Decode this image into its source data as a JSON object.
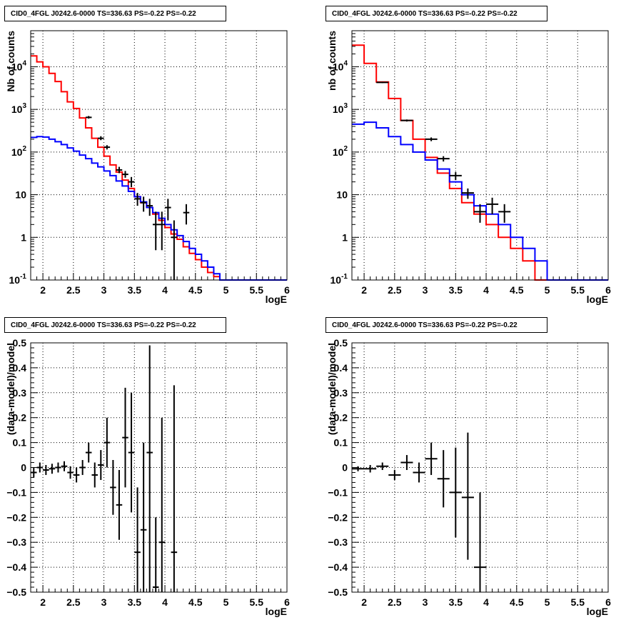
{
  "panels": [
    {
      "title": "CID0_4FGL J0242.6-0000 TS=336.63 PS=-0.22 PS=-0.22"
    },
    {
      "title": "CID0_4FGL J0242.6-0000 TS=336.63 PS=-0.22 PS=-0.22"
    },
    {
      "title": "CID0_4FGL J0242.6-0000 TS=336.63 PS=-0.22 PS=-0.22"
    },
    {
      "title": "CID0_4FGL J0242.6-0000 TS=336.63 PS=-0.22 PS=-0.22"
    }
  ],
  "colors": {
    "total_model": "#ff0000",
    "component_model": "#0000ff",
    "data": "#000000"
  },
  "chart_data": [
    {
      "type": "line",
      "title": "CID0_4FGL J0242.6-0000 TS=336.63 PS=-0.22 PS=-0.22",
      "xlabel": "logE",
      "ylabel": "Nb of counts",
      "xlim": [
        1.8,
        6
      ],
      "ylim": [
        0.1,
        70000
      ],
      "yscale": "log",
      "grid": true,
      "xticks": [
        2,
        2.5,
        3,
        3.5,
        4,
        4.5,
        5,
        5.5,
        6
      ],
      "xtick_labels": [
        "2",
        "2.5",
        "3",
        "3.5",
        "4",
        "4.5",
        "5",
        "5.5",
        "6"
      ],
      "yticks": [
        0.1,
        1,
        10,
        100,
        1000,
        10000
      ],
      "ytick_labels": [
        "10^-1",
        "1",
        "10",
        "10^2",
        "10^3",
        "10^4"
      ],
      "bin_edges": [
        1.8,
        1.9,
        2.0,
        2.1,
        2.2,
        2.3,
        2.4,
        2.5,
        2.6,
        2.7,
        2.8,
        2.9,
        3.0,
        3.1,
        3.2,
        3.3,
        3.4,
        3.5,
        3.6,
        3.7,
        3.8,
        3.9,
        4.0,
        4.1,
        4.2,
        4.3,
        4.4,
        4.5,
        4.6,
        4.7,
        4.8,
        4.9,
        5.0,
        5.1,
        5.2,
        5.3,
        5.4,
        5.5,
        5.6,
        5.7,
        5.8,
        5.9,
        6.0
      ],
      "series": [
        {
          "kind": "hist",
          "color": "#ff0000",
          "values": [
            18000,
            13000,
            10000,
            7000,
            4500,
            2600,
            1500,
            1050,
            630,
            370,
            210,
            130,
            80,
            50,
            34,
            22,
            14,
            9,
            6.5,
            5,
            3.5,
            2.5,
            1.7,
            1.2,
            0.9,
            0.6,
            0.42,
            0.3,
            0.2,
            0.15,
            0.12,
            0.1,
            0.1,
            0.1,
            0.1,
            0.1,
            0.1,
            0.1,
            0.1,
            0.1,
            0.1,
            0.1
          ]
        },
        {
          "kind": "hist",
          "color": "#0000ff",
          "values": [
            220,
            230,
            225,
            200,
            175,
            150,
            125,
            105,
            85,
            70,
            55,
            45,
            36,
            28,
            21,
            16,
            12,
            9,
            6.8,
            5,
            3.8,
            2.8,
            2.0,
            1.5,
            1.1,
            0.8,
            0.55,
            0.4,
            0.28,
            0.2,
            0.14,
            0.1,
            0.1,
            0.1,
            0.1,
            0.1,
            0.1,
            0.1,
            0.1,
            0.1,
            0.1,
            0.1
          ]
        },
        {
          "kind": "points",
          "color": "#000000",
          "points": [
            {
              "x": 2.75,
              "y": 650,
              "lo": 610,
              "hi": 700
            },
            {
              "x": 2.95,
              "y": 210,
              "lo": 190,
              "hi": 235
            },
            {
              "x": 3.05,
              "y": 130,
              "lo": 115,
              "hi": 145
            },
            {
              "x": 3.25,
              "y": 38,
              "lo": 32,
              "hi": 45
            },
            {
              "x": 3.35,
              "y": 30,
              "lo": 25,
              "hi": 36
            },
            {
              "x": 3.45,
              "y": 20,
              "lo": 15,
              "hi": 26
            },
            {
              "x": 3.55,
              "y": 8,
              "lo": 5.5,
              "hi": 11
            },
            {
              "x": 3.65,
              "y": 6.5,
              "lo": 4,
              "hi": 9
            },
            {
              "x": 3.75,
              "y": 5.5,
              "lo": 3.2,
              "hi": 8
            },
            {
              "x": 3.85,
              "y": 2,
              "lo": 0.5,
              "hi": 4
            },
            {
              "x": 3.95,
              "y": 2,
              "lo": 0.5,
              "hi": 4
            },
            {
              "x": 4.05,
              "y": 5,
              "lo": 2.5,
              "hi": 8
            },
            {
              "x": 4.15,
              "y": 1,
              "lo": 0.1,
              "hi": 2.5
            },
            {
              "x": 4.35,
              "y": 3.8,
              "lo": 2,
              "hi": 6
            }
          ]
        }
      ]
    },
    {
      "type": "line",
      "title": "CID0_4FGL J0242.6-0000 TS=336.63 PS=-0.22 PS=-0.22",
      "xlabel": "logE",
      "ylabel": "nb of counts",
      "xlim": [
        1.8,
        6
      ],
      "ylim": [
        0.1,
        70000
      ],
      "yscale": "log",
      "grid": true,
      "xticks": [
        2,
        2.5,
        3,
        3.5,
        4,
        4.5,
        5,
        5.5,
        6
      ],
      "xtick_labels": [
        "2",
        "2.5",
        "3",
        "3.5",
        "4",
        "4.5",
        "5",
        "5.5",
        "6"
      ],
      "yticks": [
        0.1,
        1,
        10,
        100,
        1000,
        10000
      ],
      "ytick_labels": [
        "10^-1",
        "1",
        "10",
        "10^2",
        "10^3",
        "10^4"
      ],
      "bin_edges": [
        1.8,
        2.0,
        2.2,
        2.4,
        2.6,
        2.8,
        3.0,
        3.2,
        3.4,
        3.6,
        3.8,
        4.0,
        4.2,
        4.4,
        4.6,
        4.8,
        5.0,
        5.2,
        5.4,
        5.6,
        5.8,
        6.0
      ],
      "series": [
        {
          "kind": "hist",
          "color": "#ff0000",
          "values": [
            32000,
            12000,
            4400,
            1800,
            550,
            200,
            75,
            32,
            14,
            6.5,
            3.5,
            2.0,
            1.0,
            0.55,
            0.28,
            0.1,
            0.1,
            0.1,
            0.1,
            0.1,
            0.1
          ]
        },
        {
          "kind": "hist",
          "color": "#0000ff",
          "values": [
            450,
            500,
            370,
            230,
            150,
            100,
            65,
            40,
            20,
            10,
            5.5,
            3.5,
            2.0,
            1.0,
            0.55,
            0.28,
            0.1,
            0.1,
            0.1,
            0.1,
            0.1
          ]
        },
        {
          "kind": "points",
          "color": "#000000",
          "points": [
            {
              "x": 2.3,
              "y": 4300,
              "lo": 4150,
              "hi": 4450
            },
            {
              "x": 2.7,
              "y": 550,
              "lo": 520,
              "hi": 580
            },
            {
              "x": 3.1,
              "y": 200,
              "lo": 180,
              "hi": 220
            },
            {
              "x": 3.3,
              "y": 70,
              "lo": 60,
              "hi": 80
            },
            {
              "x": 3.5,
              "y": 28,
              "lo": 22,
              "hi": 34
            },
            {
              "x": 3.7,
              "y": 11,
              "lo": 8,
              "hi": 14
            },
            {
              "x": 3.9,
              "y": 4,
              "lo": 2.2,
              "hi": 6
            },
            {
              "x": 4.1,
              "y": 6,
              "lo": 3.5,
              "hi": 8.5
            },
            {
              "x": 4.3,
              "y": 4,
              "lo": 2.2,
              "hi": 6
            }
          ]
        }
      ]
    },
    {
      "type": "scatter",
      "title": "CID0_4FGL J0242.6-0000 TS=336.63 PS=-0.22 PS=-0.22",
      "xlabel": "logE",
      "ylabel": "(data-model)/model",
      "xlim": [
        1.8,
        6
      ],
      "ylim": [
        -0.5,
        0.5
      ],
      "yscale": "linear",
      "grid": true,
      "xticks": [
        2,
        2.5,
        3,
        3.5,
        4,
        4.5,
        5,
        5.5,
        6
      ],
      "xtick_labels": [
        "2",
        "2.5",
        "3",
        "3.5",
        "4",
        "4.5",
        "5",
        "5.5",
        "6"
      ],
      "yticks": [
        -0.5,
        -0.4,
        -0.3,
        -0.2,
        -0.1,
        0,
        0.1,
        0.2,
        0.3,
        0.4,
        0.5
      ],
      "ytick_labels": [
        "−0.5",
        "−0.4",
        "−0.3",
        "−0.2",
        "−0.1",
        "0",
        "0.1",
        "0.2",
        "0.3",
        "0.4",
        "0.5"
      ],
      "xerr": 0.05,
      "series": [
        {
          "kind": "points",
          "color": "#000000",
          "points": [
            {
              "x": 1.85,
              "y": -0.02,
              "lo": -0.04,
              "hi": 0.0
            },
            {
              "x": 1.95,
              "y": 0.0,
              "lo": -0.02,
              "hi": 0.02
            },
            {
              "x": 2.05,
              "y": -0.01,
              "lo": -0.03,
              "hi": 0.01
            },
            {
              "x": 2.15,
              "y": -0.005,
              "lo": -0.025,
              "hi": 0.015
            },
            {
              "x": 2.25,
              "y": 0.0,
              "lo": -0.02,
              "hi": 0.02
            },
            {
              "x": 2.35,
              "y": 0.005,
              "lo": -0.015,
              "hi": 0.025
            },
            {
              "x": 2.45,
              "y": -0.02,
              "lo": -0.045,
              "hi": 0.005
            },
            {
              "x": 2.55,
              "y": -0.03,
              "lo": -0.06,
              "hi": 0.0
            },
            {
              "x": 2.65,
              "y": 0.0,
              "lo": -0.03,
              "hi": 0.03
            },
            {
              "x": 2.75,
              "y": 0.06,
              "lo": 0.02,
              "hi": 0.1
            },
            {
              "x": 2.85,
              "y": -0.03,
              "lo": -0.08,
              "hi": 0.02
            },
            {
              "x": 2.95,
              "y": 0.01,
              "lo": -0.05,
              "hi": 0.07
            },
            {
              "x": 3.05,
              "y": 0.1,
              "lo": 0.0,
              "hi": 0.2
            },
            {
              "x": 3.15,
              "y": -0.08,
              "lo": -0.19,
              "hi": 0.03
            },
            {
              "x": 3.25,
              "y": -0.15,
              "lo": -0.29,
              "hi": -0.01
            },
            {
              "x": 3.35,
              "y": 0.12,
              "lo": -0.08,
              "hi": 0.32
            },
            {
              "x": 3.45,
              "y": 0.06,
              "lo": -0.18,
              "hi": 0.3
            },
            {
              "x": 3.55,
              "y": -0.34,
              "lo": -0.6,
              "hi": -0.08
            },
            {
              "x": 3.65,
              "y": -0.25,
              "lo": -0.6,
              "hi": 0.1
            },
            {
              "x": 3.75,
              "y": 0.06,
              "lo": -0.5,
              "hi": 0.49
            },
            {
              "x": 3.85,
              "y": -0.48,
              "lo": -0.5,
              "hi": -0.2
            },
            {
              "x": 3.95,
              "y": -0.3,
              "lo": -0.5,
              "hi": 0.2
            },
            {
              "x": 4.15,
              "y": -0.34,
              "lo": -0.5,
              "hi": 0.33
            }
          ]
        }
      ]
    },
    {
      "type": "scatter",
      "title": "CID0_4FGL J0242.6-0000 TS=336.63 PS=-0.22 PS=-0.22",
      "xlabel": "logE",
      "ylabel": "(data-model)/model",
      "xlim": [
        1.8,
        6
      ],
      "ylim": [
        -0.5,
        0.5
      ],
      "yscale": "linear",
      "grid": true,
      "xticks": [
        2,
        2.5,
        3,
        3.5,
        4,
        4.5,
        5,
        5.5,
        6
      ],
      "xtick_labels": [
        "2",
        "2.5",
        "3",
        "3.5",
        "4",
        "4.5",
        "5",
        "5.5",
        "6"
      ],
      "yticks": [
        -0.5,
        -0.4,
        -0.3,
        -0.2,
        -0.1,
        0,
        0.1,
        0.2,
        0.3,
        0.4,
        0.5
      ],
      "ytick_labels": [
        "−0.5",
        "−0.4",
        "−0.3",
        "−0.2",
        "−0.1",
        "0",
        "0.1",
        "0.2",
        "0.3",
        "0.4",
        "0.5"
      ],
      "xerr": 0.1,
      "series": [
        {
          "kind": "points",
          "color": "#000000",
          "points": [
            {
              "x": 1.9,
              "y": -0.005,
              "lo": -0.015,
              "hi": 0.005
            },
            {
              "x": 2.1,
              "y": -0.005,
              "lo": -0.02,
              "hi": 0.01
            },
            {
              "x": 2.3,
              "y": 0.005,
              "lo": -0.01,
              "hi": 0.02
            },
            {
              "x": 2.5,
              "y": -0.03,
              "lo": -0.05,
              "hi": -0.01
            },
            {
              "x": 2.7,
              "y": 0.02,
              "lo": -0.01,
              "hi": 0.05
            },
            {
              "x": 2.9,
              "y": -0.02,
              "lo": -0.06,
              "hi": 0.02
            },
            {
              "x": 3.1,
              "y": 0.035,
              "lo": -0.03,
              "hi": 0.1
            },
            {
              "x": 3.3,
              "y": -0.045,
              "lo": -0.16,
              "hi": 0.07
            },
            {
              "x": 3.5,
              "y": -0.1,
              "lo": -0.28,
              "hi": 0.08
            },
            {
              "x": 3.7,
              "y": -0.12,
              "lo": -0.37,
              "hi": 0.14
            },
            {
              "x": 3.9,
              "y": -0.4,
              "lo": -0.5,
              "hi": -0.1
            }
          ]
        }
      ]
    }
  ]
}
